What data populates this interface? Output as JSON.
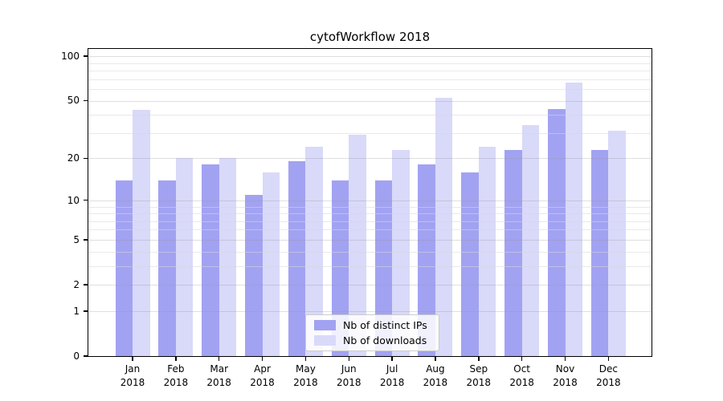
{
  "chart_data": {
    "type": "bar",
    "title": "cytofWorkflow 2018",
    "categories": [
      "Jan 2018",
      "Feb 2018",
      "Mar 2018",
      "Apr 2018",
      "May 2018",
      "Jun 2018",
      "Jul 2018",
      "Aug 2018",
      "Sep 2018",
      "Oct 2018",
      "Nov 2018",
      "Dec 2018"
    ],
    "series": [
      {
        "name": "Nb of distinct IPs",
        "color": "#a2a2f2",
        "values": [
          14,
          14,
          18,
          11,
          19,
          14,
          14,
          18,
          16,
          23,
          44,
          23
        ]
      },
      {
        "name": "Nb of downloads",
        "color": "#d9d9f9",
        "values": [
          43,
          20,
          20,
          16,
          24,
          29,
          23,
          52,
          24,
          34,
          66,
          31
        ]
      }
    ],
    "xlabel": "",
    "ylabel": "",
    "yscale": "log1p",
    "ylim": [
      0,
      112
    ],
    "yticks": [
      100,
      50,
      20,
      10,
      5,
      2,
      1,
      0
    ],
    "grid_major": [
      1,
      2,
      5,
      10,
      20,
      50,
      100
    ],
    "grid_minor": [
      3,
      4,
      6,
      7,
      8,
      9,
      30,
      40,
      60,
      70,
      80,
      90
    ],
    "legend_position": "lower center",
    "axis_color": "#000000",
    "background_color": "#ffffff"
  }
}
